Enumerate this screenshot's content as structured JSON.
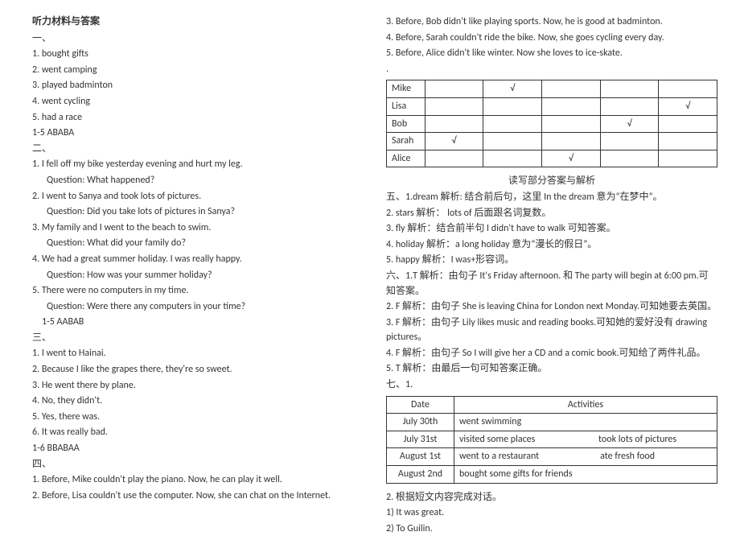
{
  "left": {
    "heading": "听力材料与答案",
    "s1_label": "一、",
    "s1_items": [
      "1. bought gifts",
      "2. went camping",
      "3. played badminton",
      "4. went cycling",
      "5. had a race"
    ],
    "s1_key": "1-5 ABABA",
    "s2_label": "二、",
    "s2_items": [
      "1. I fell off my bike yesterday evening and hurt my leg.",
      "Question: What happened?",
      "2. I went to Sanya and took lots of pictures.",
      "Question: Did you take lots of pictures in Sanya?",
      "3. My family and I went to the beach to swim.",
      "Question: What did your family do?",
      "4. We had a great summer holiday. I was really happy.",
      "Question: How was your summer holiday?",
      "5. There were no computers in my time.",
      "Question: Were there any computers in your time?"
    ],
    "s2_key": "1-5 AABAB",
    "s3_label": "三、",
    "s3_items": [
      "1.   I went to Hainai.",
      "2.   Because I like the grapes there, they're so sweet.",
      "3.   He went there by plane.",
      "4.   No, they didn't.",
      "5.   Yes, there was.",
      "6.   It was really bad."
    ],
    "s3_key": "1-6 BBABAA",
    "s4_label": "四、",
    "s4_items": [
      "1. Before, Mike couldn't play the piano. Now, he can play it well.",
      "2. Before, Lisa couldn't use the computer. Now, she can chat on the Internet."
    ]
  },
  "right": {
    "s4_cont": [
      "3. Before, Bob didn't like playing sports. Now, he is good at badminton.",
      "4. Before, Sarah couldn't ride the bike. Now, she goes cycling every day.",
      "5. Before, Alice didn't like winter. Now she loves to ice-skate.",
      "."
    ],
    "table1": {
      "rows": [
        [
          "Mike",
          "",
          "√",
          "",
          "",
          ""
        ],
        [
          "Lisa",
          "",
          "",
          "",
          "",
          "√"
        ],
        [
          "Bob",
          "",
          "",
          "",
          "√",
          ""
        ],
        [
          "Sarah",
          "√",
          "",
          "",
          "",
          ""
        ],
        [
          "Alice",
          "",
          "",
          "√",
          "",
          ""
        ]
      ]
    },
    "rw_heading": "读写部分答案与解析",
    "s5_items": [
      "五、1.dream   解析: 结合前后句，这里 In the dream 意为“在梦中”。",
      "2. stars   解析： lots of  后面跟名词复数。",
      "3. fly   解析：结合前半句 I didn't have to walk 可知答案。",
      "4. holiday   解析：a long holiday  意为“漫长的假日”。",
      "5. happy    解析：I was+形容词。"
    ],
    "s6_items": [
      "六、1.T    解析：由句子 It's Friday afternoon.  和 The party will begin at 6:00 pm.可知答案。",
      "2. F    解析：由句子 She is leaving China for London next Monday.可知她要去英国。",
      "3. F    解析：由句子 Lily likes music and reading books.可知她的爱好没有 drawing pictures。",
      "4. F    解析：由句子 So I will give her a CD and a comic book.可知给了两件礼品。",
      "5. T    解析：由最后一句可知答案正确。"
    ],
    "s7_label": "七、1.",
    "table2": {
      "headers": [
        "Date",
        "Activities"
      ],
      "rows": [
        [
          "July 30th",
          "went swimming"
        ],
        [
          "July 31st",
          "visited some places                             took lots of pictures"
        ],
        [
          "August 1st",
          "went to a restaurant                            ate fresh food"
        ],
        [
          "August 2nd",
          "bought some gifts for friends"
        ]
      ]
    },
    "s7_tail": [
      "2. 根据短文内容完成对话。",
      "1) It was great.",
      "2) To Guilin."
    ]
  }
}
